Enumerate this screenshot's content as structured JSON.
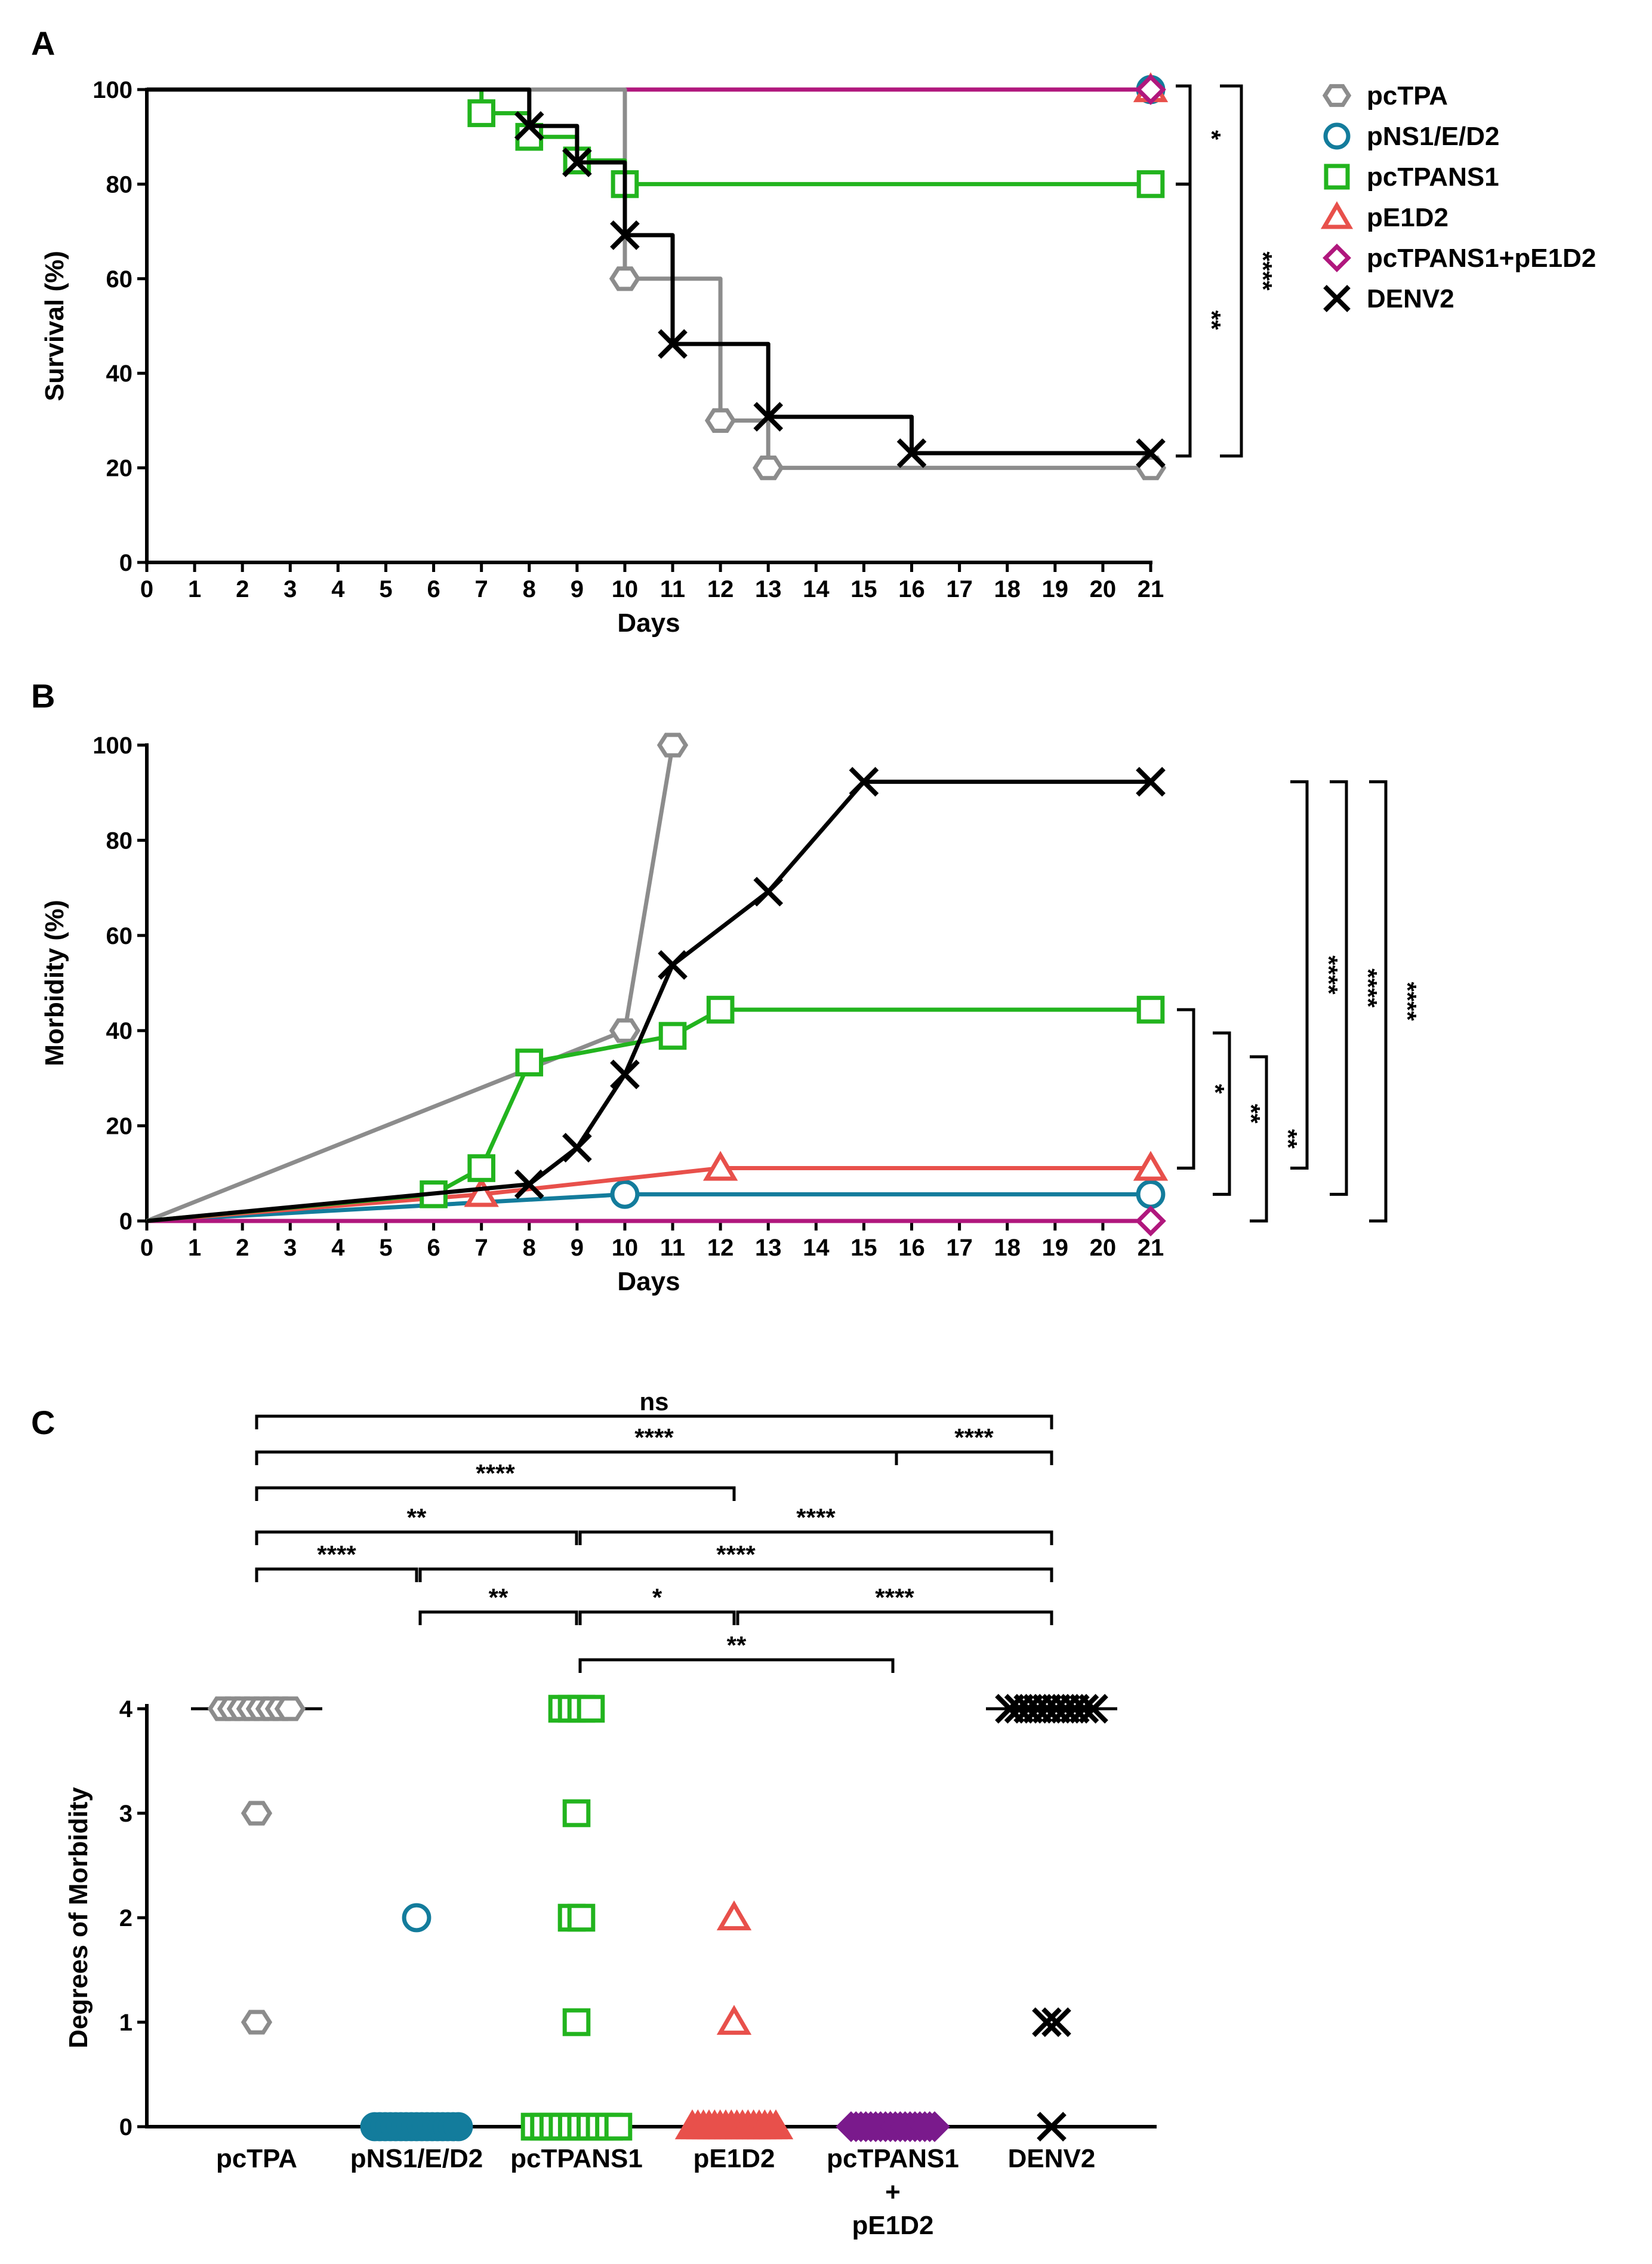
{
  "figure": {
    "colors": {
      "pcTPA": "#8c8c8c",
      "pNS1/E/D2": "#137c9c",
      "pcTPANS1": "#22b41e",
      "pE1D2": "#e8504b",
      "pcTPANS1+pE1D2": "#b0177d",
      "pcTPANS1_fill": "#7a1a8c",
      "DENV2": "#000000"
    }
  },
  "chart_data": [
    {
      "panel": "A",
      "type": "line",
      "subtype": "step (Kaplan-Meier)",
      "xlabel": "Days",
      "ylabel": "Survival (%)",
      "xlim": [
        0,
        21
      ],
      "ylim": [
        0,
        100
      ],
      "x_ticks": [
        "0",
        "1",
        "2",
        "3",
        "4",
        "5",
        "6",
        "7",
        "8",
        "9",
        "10",
        "11",
        "12",
        "13",
        "14",
        "15",
        "16",
        "17",
        "18",
        "19",
        "20",
        "21"
      ],
      "y_ticks": [
        "0",
        "20",
        "40",
        "60",
        "80",
        "100"
      ],
      "legend": {
        "position": "right",
        "entries": [
          {
            "name": "pcTPA",
            "marker": "hexagon"
          },
          {
            "name": "pNS1/E/D2",
            "marker": "circle"
          },
          {
            "name": "pcTPANS1",
            "marker": "square"
          },
          {
            "name": "pE1D2",
            "marker": "triangle"
          },
          {
            "name": "pcTPANS1+pE1D2",
            "marker": "diamond"
          },
          {
            "name": "DENV2",
            "marker": "x"
          }
        ]
      },
      "series": [
        {
          "name": "pcTPA",
          "points": [
            [
              0,
              100
            ],
            [
              10,
              100
            ],
            [
              10,
              60
            ],
            [
              12,
              60
            ],
            [
              12,
              30
            ],
            [
              13,
              30
            ],
            [
              13,
              20
            ],
            [
              21,
              20
            ]
          ],
          "markers": [
            [
              10,
              60
            ],
            [
              12,
              30
            ],
            [
              13,
              20
            ],
            [
              21,
              20
            ]
          ]
        },
        {
          "name": "pNS1/E/D2",
          "points": [
            [
              0,
              100
            ],
            [
              21,
              100
            ]
          ],
          "markers": [
            [
              21,
              100
            ]
          ]
        },
        {
          "name": "pcTPANS1",
          "points": [
            [
              0,
              100
            ],
            [
              7,
              100
            ],
            [
              7,
              95
            ],
            [
              8,
              95
            ],
            [
              8,
              90
            ],
            [
              9,
              90
            ],
            [
              9,
              85
            ],
            [
              10,
              85
            ],
            [
              10,
              80
            ],
            [
              21,
              80
            ]
          ],
          "markers": [
            [
              7,
              95
            ],
            [
              8,
              90
            ],
            [
              9,
              85
            ],
            [
              10,
              80
            ],
            [
              21,
              80
            ]
          ]
        },
        {
          "name": "pE1D2",
          "points": [
            [
              0,
              100
            ],
            [
              21,
              100
            ]
          ],
          "markers": [
            [
              21,
              100
            ]
          ]
        },
        {
          "name": "pcTPANS1+pE1D2",
          "points": [
            [
              0,
              100
            ],
            [
              21,
              100
            ]
          ],
          "markers": [
            [
              21,
              100
            ]
          ]
        },
        {
          "name": "DENV2",
          "points": [
            [
              0,
              100
            ],
            [
              8,
              100
            ],
            [
              8,
              92.3
            ],
            [
              9,
              92.3
            ],
            [
              9,
              84.6
            ],
            [
              10,
              84.6
            ],
            [
              10,
              69.2
            ],
            [
              11,
              69.2
            ],
            [
              11,
              46.2
            ],
            [
              13,
              46.2
            ],
            [
              13,
              30.8
            ],
            [
              16,
              30.8
            ],
            [
              16,
              23.1
            ],
            [
              21,
              23.1
            ]
          ],
          "markers": [
            [
              8,
              92.3
            ],
            [
              9,
              84.6
            ],
            [
              10,
              69.2
            ],
            [
              11,
              46.2
            ],
            [
              13,
              30.8
            ],
            [
              16,
              23.1
            ],
            [
              21,
              23.1
            ]
          ]
        }
      ],
      "annotations": [
        {
          "label": "*",
          "from": "pcTPANS1 (100)",
          "to": "pcTPANS1 (80)"
        },
        {
          "label": "**",
          "from": "pcTPANS1 (80)",
          "to": "DENV2 (23)"
        },
        {
          "label": "****",
          "from": "pNS1/E/D2 (100)",
          "to": "DENV2 (23)"
        }
      ]
    },
    {
      "panel": "B",
      "type": "line",
      "xlabel": "Days",
      "ylabel": "Morbidity (%)",
      "xlim": [
        0,
        21
      ],
      "ylim": [
        0,
        100
      ],
      "x_ticks": [
        "0",
        "1",
        "2",
        "3",
        "4",
        "5",
        "6",
        "7",
        "8",
        "9",
        "10",
        "11",
        "12",
        "13",
        "14",
        "15",
        "16",
        "17",
        "18",
        "19",
        "20",
        "21"
      ],
      "y_ticks": [
        "0",
        "20",
        "40",
        "60",
        "80",
        "100"
      ],
      "series": [
        {
          "name": "pcTPA",
          "points": [
            [
              0,
              0
            ],
            [
              10,
              40
            ],
            [
              11,
              100
            ]
          ],
          "markers": [
            [
              10,
              40
            ],
            [
              11,
              100
            ]
          ]
        },
        {
          "name": "pNS1/E/D2",
          "points": [
            [
              0,
              0
            ],
            [
              10,
              5.6
            ],
            [
              21,
              5.6
            ]
          ],
          "markers": [
            [
              10,
              5.6
            ],
            [
              21,
              5.6
            ]
          ]
        },
        {
          "name": "pcTPANS1",
          "points": [
            [
              0,
              0
            ],
            [
              6,
              5.6
            ],
            [
              7,
              11.1
            ],
            [
              8,
              33.3
            ],
            [
              11,
              38.9
            ],
            [
              12,
              44.4
            ],
            [
              21,
              44.4
            ]
          ],
          "markers": [
            [
              6,
              5.6
            ],
            [
              7,
              11.1
            ],
            [
              8,
              33.3
            ],
            [
              11,
              38.9
            ],
            [
              12,
              44.4
            ],
            [
              21,
              44.4
            ]
          ]
        },
        {
          "name": "pE1D2",
          "points": [
            [
              0,
              0
            ],
            [
              7,
              5.6
            ],
            [
              12,
              11.1
            ],
            [
              21,
              11.1
            ]
          ],
          "markers": [
            [
              7,
              5.6
            ],
            [
              12,
              11.1
            ],
            [
              21,
              11.1
            ]
          ]
        },
        {
          "name": "pcTPANS1+pE1D2",
          "points": [
            [
              0,
              0
            ],
            [
              21,
              0
            ]
          ],
          "markers": [
            [
              21,
              0
            ]
          ]
        },
        {
          "name": "DENV2",
          "points": [
            [
              0,
              0
            ],
            [
              8,
              7.7
            ],
            [
              9,
              15.4
            ],
            [
              10,
              30.8
            ],
            [
              11,
              53.8
            ],
            [
              13,
              69.2
            ],
            [
              15,
              92.3
            ],
            [
              21,
              92.3
            ]
          ],
          "markers": [
            [
              8,
              7.7
            ],
            [
              9,
              15.4
            ],
            [
              10,
              30.8
            ],
            [
              11,
              53.8
            ],
            [
              13,
              69.2
            ],
            [
              15,
              92.3
            ],
            [
              21,
              92.3
            ]
          ]
        }
      ],
      "annotations": [
        {
          "label": "*",
          "from": "pcTPANS1 (44)",
          "to": "pE1D2 (11)"
        },
        {
          "label": "**",
          "from": "pcTPANS1 (44)",
          "to": "pNS1/E/D2 (6)"
        },
        {
          "label": "**",
          "from": "pcTPANS1 (44)",
          "to": "pcTPANS1+pE1D2 (0)"
        },
        {
          "label": "****",
          "from": "DENV2 (92)",
          "to": "pE1D2 (11)"
        },
        {
          "label": "****",
          "from": "DENV2 (92)",
          "to": "pNS1/E/D2 (6)"
        },
        {
          "label": "****",
          "from": "DENV2 (92)",
          "to": "pcTPANS1+pE1D2 (0)"
        }
      ]
    },
    {
      "panel": "C",
      "type": "scatter",
      "subtype": "dot plot",
      "xlabel": "",
      "ylabel": "Degrees of Morbidity",
      "ylim": [
        0,
        4
      ],
      "y_ticks": [
        "0",
        "1",
        "2",
        "3",
        "4"
      ],
      "categories": [
        "pcTPA",
        "pNS1/E/D2",
        "pcTPANS1",
        "pE1D2",
        "pcTPANS1\n+\npE1D2",
        "DENV2"
      ],
      "counts": {
        "pcTPA": {
          "0": 0,
          "1": 1,
          "2": 0,
          "3": 1,
          "4": 8
        },
        "pNS1/E/D2": {
          "0": 17,
          "1": 0,
          "2": 1,
          "3": 0,
          "4": 0
        },
        "pcTPANS1": {
          "0": 10,
          "1": 1,
          "2": 2,
          "3": 1,
          "4": 4
        },
        "pE1D2": {
          "0": 16,
          "1": 1,
          "2": 1,
          "3": 0,
          "4": 0
        },
        "pcTPANS1+pE1D2": {
          "0": 18,
          "1": 0,
          "2": 0,
          "3": 0,
          "4": 0
        },
        "DENV2": {
          "0": 1,
          "1": 2,
          "2": 0,
          "3": 0,
          "4": 10
        }
      },
      "medians": {
        "pcTPA": 4,
        "pNS1/E/D2": 0,
        "pcTPANS1": 0,
        "pE1D2": 0,
        "pcTPANS1+pE1D2": 0,
        "DENV2": 4
      },
      "significance": [
        {
          "label": "ns",
          "a": 0,
          "b": 5,
          "level": 0
        },
        {
          "label": "****",
          "a": 0,
          "b": 5,
          "level": 1
        },
        {
          "label": "****",
          "a": 4,
          "b": 5,
          "level": 1
        },
        {
          "label": "****",
          "a": 0,
          "b": 3,
          "level": 2
        },
        {
          "label": "**",
          "a": 0,
          "b": 2,
          "level": 3
        },
        {
          "label": "****",
          "a": 2,
          "b": 5,
          "level": 3
        },
        {
          "label": "****",
          "a": 0,
          "b": 1,
          "level": 4
        },
        {
          "label": "****",
          "a": 1,
          "b": 5,
          "level": 4
        },
        {
          "label": "**",
          "a": 1,
          "b": 2,
          "level": 5
        },
        {
          "label": "*",
          "a": 2,
          "b": 3,
          "level": 5
        },
        {
          "label": "****",
          "a": 3,
          "b": 5,
          "level": 5
        },
        {
          "label": "**",
          "a": 2,
          "b": 4,
          "level": 6
        }
      ]
    }
  ]
}
